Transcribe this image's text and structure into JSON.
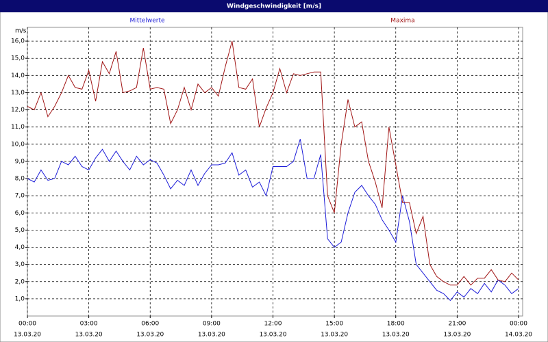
{
  "chart_data": {
    "type": "line",
    "title": "Windgeschwindigkeit [m/s]",
    "y_label": "m/s",
    "x": [
      0,
      20,
      40,
      60,
      80,
      100,
      120,
      140,
      160,
      180,
      200,
      220,
      240,
      260,
      280,
      300,
      320,
      340,
      360,
      380,
      400,
      420,
      440,
      460,
      480,
      500,
      520,
      540,
      560,
      580,
      600,
      620,
      640,
      660,
      680,
      700,
      720,
      740,
      760,
      780,
      800,
      820,
      840,
      860,
      880,
      900,
      920,
      940,
      960,
      980,
      1000,
      1020,
      1040,
      1060,
      1080,
      1100,
      1120,
      1140,
      1160,
      1180,
      1200,
      1220,
      1240,
      1260,
      1280,
      1300,
      1320,
      1340,
      1360,
      1380,
      1400,
      1420,
      1440
    ],
    "series": [
      {
        "name": "Mittelwerte",
        "color": "#1c1cd8",
        "values": [
          8.0,
          7.8,
          8.5,
          7.9,
          8.0,
          9.0,
          8.8,
          9.3,
          8.7,
          8.5,
          9.2,
          9.7,
          9.0,
          9.6,
          9.0,
          8.5,
          9.3,
          8.8,
          9.1,
          8.9,
          8.2,
          7.4,
          7.9,
          7.6,
          8.5,
          7.6,
          8.3,
          8.8,
          8.8,
          8.9,
          9.5,
          8.2,
          8.5,
          7.5,
          7.8,
          7.0,
          8.7,
          8.7,
          8.7,
          9.0,
          10.3,
          8.0,
          8.0,
          9.4,
          4.5,
          4.0,
          4.3,
          6.0,
          7.2,
          7.6,
          7.0,
          6.5,
          5.6,
          5.0,
          4.3,
          7.0,
          5.5,
          3.0,
          2.5,
          2.0,
          1.5,
          1.3,
          0.9,
          1.4,
          1.1,
          1.6,
          1.3,
          1.9,
          1.4,
          2.1,
          1.8,
          1.3,
          1.6
        ]
      },
      {
        "name": "Maxima",
        "color": "#a01414",
        "values": [
          12.2,
          12.0,
          13.0,
          11.6,
          12.2,
          13.0,
          14.0,
          13.3,
          13.2,
          14.3,
          12.5,
          14.8,
          14.1,
          15.4,
          13.0,
          13.1,
          13.3,
          15.6,
          13.2,
          13.3,
          13.2,
          11.2,
          12.0,
          13.3,
          12.0,
          13.5,
          13.0,
          13.3,
          12.8,
          14.5,
          16.0,
          13.3,
          13.2,
          13.8,
          11.0,
          12.1,
          13.0,
          14.4,
          13.0,
          14.1,
          14.0,
          14.1,
          14.2,
          14.2,
          7.0,
          6.0,
          10.0,
          12.6,
          11.0,
          11.3,
          9.0,
          7.8,
          6.3,
          11.0,
          8.8,
          6.6,
          6.6,
          4.8,
          5.8,
          3.0,
          2.3,
          2.0,
          1.8,
          1.8,
          2.3,
          1.8,
          2.2,
          2.2,
          2.7,
          2.1,
          2.0,
          2.5,
          2.1
        ]
      }
    ],
    "xlim": [
      0,
      1440
    ],
    "xticks": [
      {
        "value": 0,
        "label": "00:00",
        "date": "13.03.20"
      },
      {
        "value": 180,
        "label": "03:00",
        "date": "13.03.20"
      },
      {
        "value": 360,
        "label": "06:00",
        "date": "13.03.20"
      },
      {
        "value": 540,
        "label": "09:00",
        "date": "13.03.20"
      },
      {
        "value": 720,
        "label": "12:00",
        "date": "13.03.20"
      },
      {
        "value": 900,
        "label": "15:00",
        "date": "13.03.20"
      },
      {
        "value": 1080,
        "label": "18:00",
        "date": "13.03.20"
      },
      {
        "value": 1260,
        "label": "21:00",
        "date": "13.03.20"
      },
      {
        "value": 1440,
        "label": "00:00",
        "date": "14.03.20"
      }
    ],
    "ylim": [
      0,
      16.8
    ],
    "yticks": [
      {
        "value": 1,
        "label": "1,0"
      },
      {
        "value": 2,
        "label": "2,0"
      },
      {
        "value": 3,
        "label": "3,0"
      },
      {
        "value": 4,
        "label": "4,0"
      },
      {
        "value": 5,
        "label": "5,0"
      },
      {
        "value": 6,
        "label": "6,0"
      },
      {
        "value": 7,
        "label": "7,0"
      },
      {
        "value": 8,
        "label": "8,0"
      },
      {
        "value": 9,
        "label": "9,0"
      },
      {
        "value": 10,
        "label": "10,0"
      },
      {
        "value": 11,
        "label": "11,0"
      },
      {
        "value": 12,
        "label": "12,0"
      },
      {
        "value": 13,
        "label": "13,0"
      },
      {
        "value": 14,
        "label": "14,0"
      },
      {
        "value": 15,
        "label": "15,0"
      },
      {
        "value": 16,
        "label": "16,0"
      }
    ],
    "grid": true
  }
}
